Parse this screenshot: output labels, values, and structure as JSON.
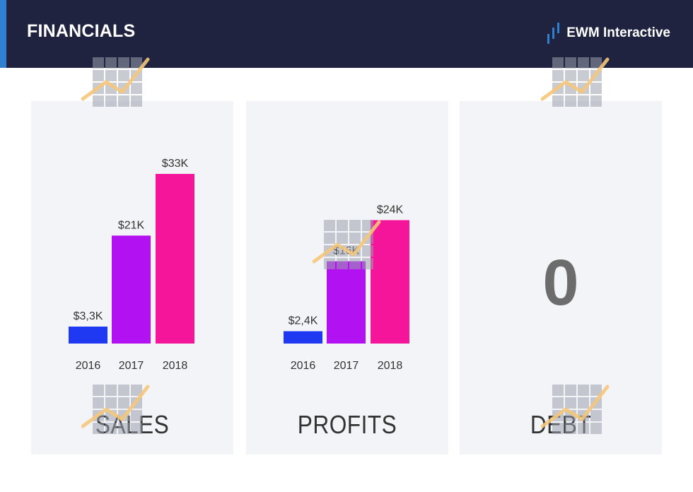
{
  "header": {
    "title": "FINANCIALS",
    "brand": "EWM Interactive"
  },
  "colors": {
    "header_bg": "#1f2340",
    "accent": "#2f80d1",
    "card_bg": "#f3f4f7",
    "bar_2016": "#1f39f2",
    "bar_2017": "#b212f1",
    "bar_2018": "#f5159a"
  },
  "icons": {
    "brand": "bar-chart-logo-icon",
    "watermark": "growth-chart-watermark-icon"
  },
  "cards": {
    "sales": {
      "label": "SALES"
    },
    "profits": {
      "label": "PROFITS"
    },
    "debt": {
      "label": "DEBT",
      "value": "0"
    }
  },
  "chart_data": [
    {
      "type": "bar",
      "categories": [
        "2016",
        "2017",
        "2018"
      ],
      "values": [
        3.3,
        21,
        33
      ],
      "data_labels": [
        "$3,3K",
        "$21K",
        "$33K"
      ],
      "title": "SALES",
      "xlabel": "",
      "ylabel": "",
      "ylim": [
        0,
        33
      ],
      "grid": false
    },
    {
      "type": "bar",
      "categories": [
        "2016",
        "2017",
        "2018"
      ],
      "values": [
        2.4,
        16,
        24
      ],
      "data_labels": [
        "$2,4K",
        "$16K",
        "$24K"
      ],
      "title": "PROFITS",
      "xlabel": "",
      "ylabel": "",
      "ylim": [
        0,
        24
      ],
      "grid": false
    }
  ]
}
